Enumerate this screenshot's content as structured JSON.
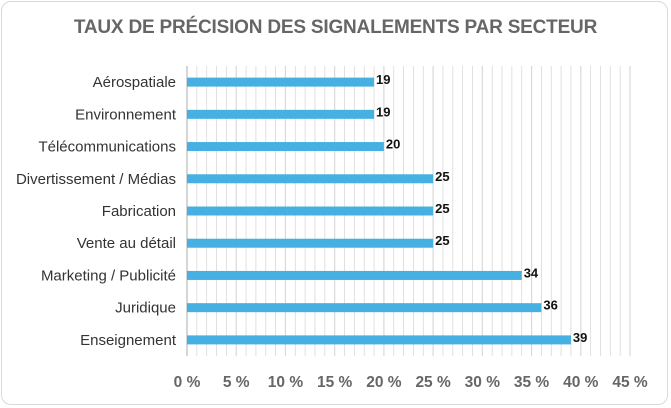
{
  "chart_data": {
    "type": "bar",
    "orientation": "horizontal",
    "title": "TAUX DE PRÉCISION DES SIGNALEMENTS PAR SECTEUR",
    "xlabel": "",
    "ylabel": "",
    "categories": [
      "Aérospatiale",
      "Environnement",
      "Télécommunications",
      "Divertissement / Médias",
      "Fabrication",
      "Vente au détail",
      "Marketing / Publicité",
      "Juridique",
      "Enseignement"
    ],
    "values": [
      19,
      19,
      20,
      25,
      25,
      25,
      34,
      36,
      39
    ],
    "xlim": [
      0,
      45
    ],
    "x_ticks": [
      0,
      5,
      10,
      15,
      20,
      25,
      30,
      35,
      40,
      45
    ],
    "x_tick_labels": [
      "0 %",
      "5 %",
      "10 %",
      "15 %",
      "20 %",
      "25 %",
      "30 %",
      "35 %",
      "40 %",
      "45 %"
    ],
    "minor_gridlines": true,
    "bar_color": "#45b0e1",
    "grid_color": "#d9d9d9"
  }
}
